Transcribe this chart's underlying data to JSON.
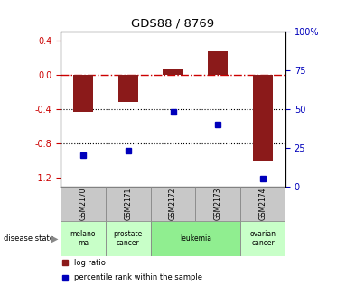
{
  "title": "GDS88 / 8769",
  "samples": [
    "GSM2170",
    "GSM2171",
    "GSM2172",
    "GSM2173",
    "GSM2174"
  ],
  "log_ratio": [
    -0.43,
    -0.32,
    0.07,
    0.27,
    -1.0
  ],
  "percentile_rank": [
    20,
    23,
    48,
    40,
    5
  ],
  "ylim_left": [
    -1.3,
    0.5
  ],
  "ylim_right": [
    0,
    100
  ],
  "y_ticks_left": [
    -1.2,
    -0.8,
    -0.4,
    0.0,
    0.4
  ],
  "y_ticks_right": [
    0,
    25,
    50,
    75,
    100
  ],
  "disease_states": [
    {
      "label": "melano\nma",
      "color": "#c8ffc8",
      "span": [
        0,
        1
      ]
    },
    {
      "label": "prostate\ncancer",
      "color": "#c8ffc8",
      "span": [
        1,
        2
      ]
    },
    {
      "label": "leukemia",
      "color": "#90ee90",
      "span": [
        2,
        4
      ]
    },
    {
      "label": "ovarian\ncancer",
      "color": "#c8ffc8",
      "span": [
        4,
        5
      ]
    }
  ],
  "bar_color": "#8b1a1a",
  "dot_color": "#0000bb",
  "hline_color": "#cc0000",
  "dotline_color": "black",
  "background": "white",
  "tick_label_color_left": "#cc0000",
  "tick_label_color_right": "#0000bb",
  "gsm_box_color": "#c8c8c8",
  "legend_log_ratio_color": "#8b1a1a",
  "legend_percentile_color": "#0000bb"
}
